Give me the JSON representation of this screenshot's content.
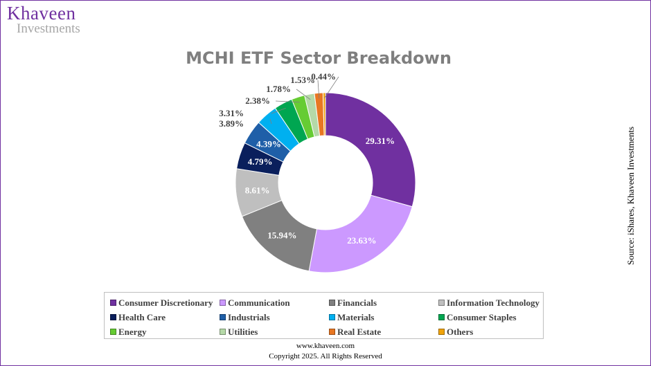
{
  "header": {
    "logo_main": "Khaveen",
    "logo_sub": "Investments"
  },
  "footer": {
    "url": "www.khaveen.com",
    "copyright": "Copyright 2025. All Rights Reserved"
  },
  "source": "Source: iShares, Khaveen Investments",
  "chart_data": {
    "type": "donut",
    "title": "MCHI ETF Sector Breakdown",
    "legend_position": "bottom",
    "sectors": [
      {
        "name": "Consumer Discretionary",
        "value": 29.31,
        "label": "29.31%",
        "color": "#7030a0"
      },
      {
        "name": "Communication",
        "value": 23.63,
        "label": "23.63%",
        "color": "#cc99ff"
      },
      {
        "name": "Financials",
        "value": 15.94,
        "label": "15.94%",
        "color": "#808080"
      },
      {
        "name": "Information Technology",
        "value": 8.61,
        "label": "8.61%",
        "color": "#bfbfbf"
      },
      {
        "name": "Health Care",
        "value": 4.79,
        "label": "4.79%",
        "color": "#0a1f5c"
      },
      {
        "name": "Industrials",
        "value": 4.39,
        "label": "4.39%",
        "color": "#1f5fa8"
      },
      {
        "name": "Materials",
        "value": 3.89,
        "label": "3.89%",
        "color": "#00b0f0"
      },
      {
        "name": "Consumer Staples",
        "value": 3.31,
        "label": "3.31%",
        "color": "#00a651"
      },
      {
        "name": "Energy",
        "value": 2.38,
        "label": "2.38%",
        "color": "#66cc33"
      },
      {
        "name": "Utilities",
        "value": 1.78,
        "label": "1.78%",
        "color": "#b5d9a8"
      },
      {
        "name": "Real Estate",
        "value": 1.53,
        "label": "1.53%",
        "color": "#e87722"
      },
      {
        "name": "Others",
        "value": 0.44,
        "label": "0.44%",
        "color": "#f0a30a"
      }
    ]
  }
}
